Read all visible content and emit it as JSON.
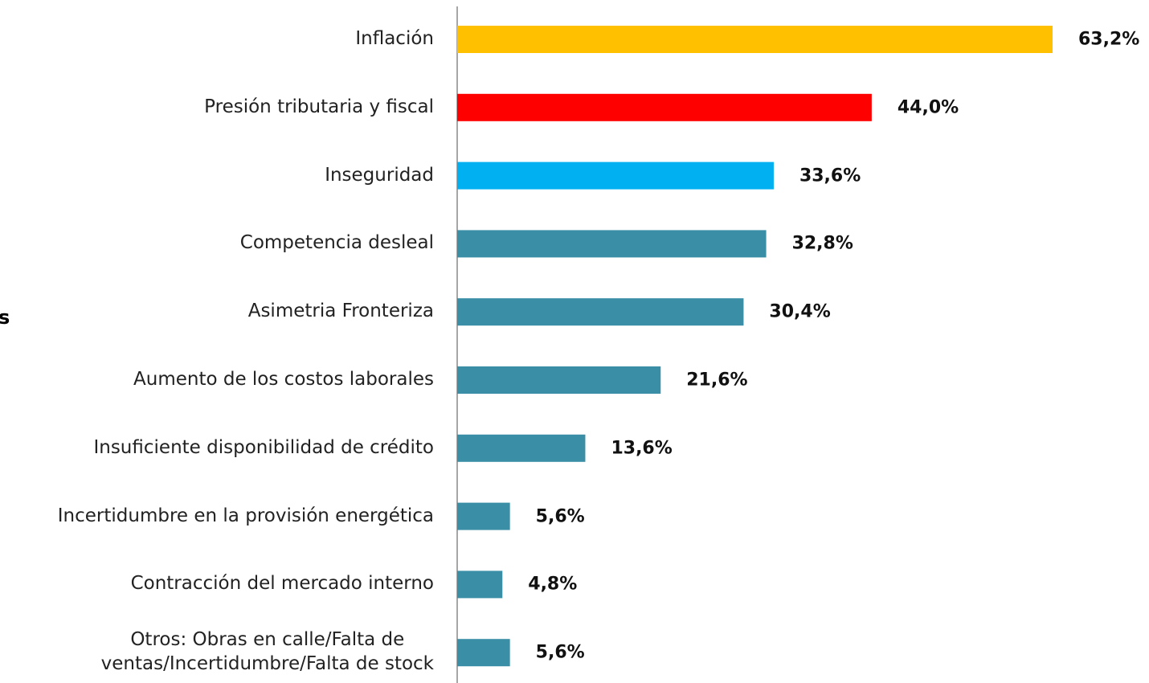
{
  "chart_data": {
    "type": "bar",
    "orientation": "horizontal",
    "annotation": "s",
    "categories": [
      "Inflación",
      "Presión tributaria y fiscal",
      "Inseguridad",
      "Competencia desleal",
      "Asimetria Fronteriza",
      "Aumento de los costos laborales",
      "Insuficiente disponibilidad de crédito",
      "Incertidumbre en la provisión energética",
      "Contracción del mercado interno",
      "Otros: Obras en calle/Falta de\nventas/Incertidumbre/Falta de stock"
    ],
    "values": [
      63.2,
      44.0,
      33.6,
      32.8,
      30.4,
      21.6,
      13.6,
      5.6,
      4.8,
      5.6
    ],
    "value_labels": [
      "63,2%",
      "44,0%",
      "33,6%",
      "32,8%",
      "30,4%",
      "21,6%",
      "13,6%",
      "5,6%",
      "4,8%",
      "5,6%"
    ],
    "colors": [
      "#FFC000",
      "#FF0000",
      "#00B0F0",
      "#3A8FA6",
      "#3A8FA6",
      "#3A8FA6",
      "#3A8FA6",
      "#3A8FA6",
      "#3A8FA6",
      "#3A8FA6"
    ],
    "xlim": [
      0,
      70
    ]
  }
}
